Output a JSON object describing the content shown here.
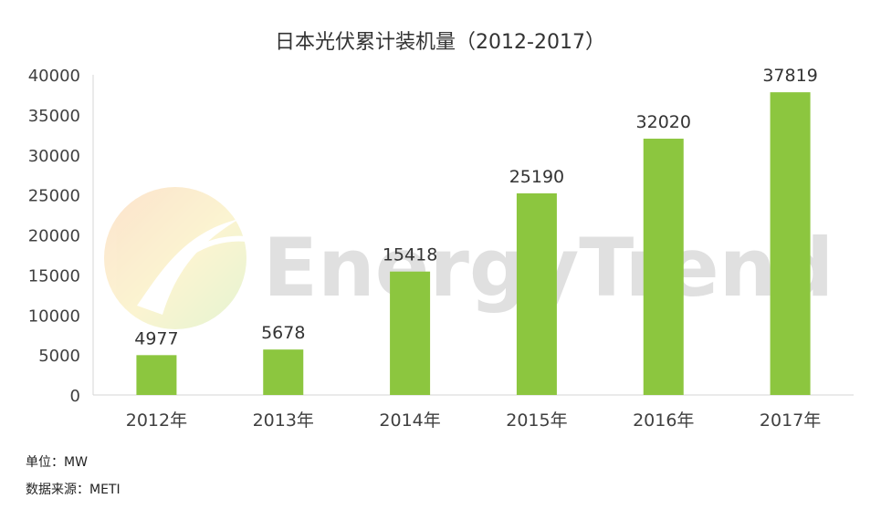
{
  "chart_data": {
    "type": "bar",
    "title": "日本光伏累计装机量（2012-2017）",
    "categories": [
      "2012年",
      "2013年",
      "2014年",
      "2015年",
      "2016年",
      "2017年"
    ],
    "series": [
      {
        "values": [
          4977,
          5678,
          15418,
          25190,
          32020,
          37819
        ]
      }
    ],
    "data_labels": [
      "4977",
      "5678",
      "15418",
      "25190",
      "32020",
      "37819"
    ],
    "ylim": [
      0,
      40000
    ],
    "y_ticks": [
      0,
      5000,
      10000,
      15000,
      20000,
      25000,
      30000,
      35000,
      40000
    ],
    "y_tick_labels": [
      "0",
      "5000",
      "10000",
      "15000",
      "20000",
      "25000",
      "30000",
      "35000",
      "40000"
    ],
    "xlabel": "",
    "ylabel": "",
    "grid": false,
    "legend": "none",
    "bar_color": "#8cc63f"
  },
  "watermark": {
    "text": "EnergyTrend"
  },
  "notes": {
    "unit": "单位：MW",
    "source": "数据来源：METI"
  }
}
